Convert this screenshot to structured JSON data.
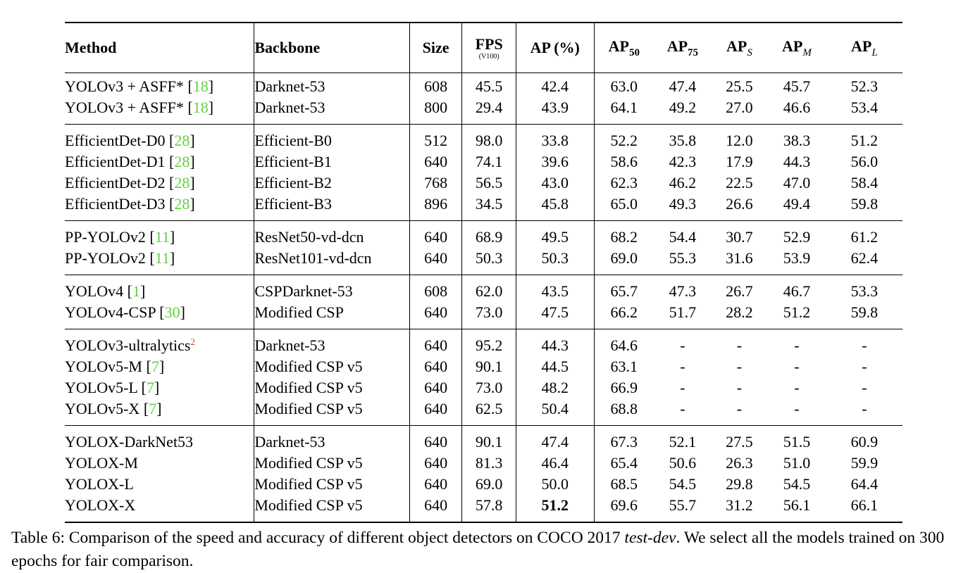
{
  "header": {
    "method": "Method",
    "backbone": "Backbone",
    "size": "Size",
    "fps": "FPS",
    "fps_sub": "(V100)",
    "ap": "AP (%)",
    "ap50": "AP",
    "ap50_sub": "50",
    "ap75": "AP",
    "ap75_sub": "75",
    "aps": "AP",
    "aps_sub": "S",
    "apm": "AP",
    "apm_sub": "M",
    "apl": "AP",
    "apl_sub": "L"
  },
  "groups": [
    {
      "rows": [
        {
          "method": "YOLOv3 + ASFF* [",
          "ref": "18",
          "close": "]",
          "backbone": "Darknet-53",
          "size": "608",
          "fps": "45.5",
          "ap": "42.4",
          "ap50": "63.0",
          "ap75": "47.4",
          "aps": "25.5",
          "apm": "45.7",
          "apl": "52.3"
        },
        {
          "method": "YOLOv3 + ASFF* [",
          "ref": "18",
          "close": "]",
          "backbone": "Darknet-53",
          "size": "800",
          "fps": "29.4",
          "ap": "43.9",
          "ap50": "64.1",
          "ap75": "49.2",
          "aps": "27.0",
          "apm": "46.6",
          "apl": "53.4"
        }
      ]
    },
    {
      "rows": [
        {
          "method": "EfficientDet-D0 [",
          "ref": "28",
          "close": "]",
          "backbone": "Efficient-B0",
          "size": "512",
          "fps": "98.0",
          "ap": "33.8",
          "ap50": "52.2",
          "ap75": "35.8",
          "aps": "12.0",
          "apm": "38.3",
          "apl": "51.2"
        },
        {
          "method": "EfficientDet-D1 [",
          "ref": "28",
          "close": "]",
          "backbone": "Efficient-B1",
          "size": "640",
          "fps": "74.1",
          "ap": "39.6",
          "ap50": "58.6",
          "ap75": "42.3",
          "aps": "17.9",
          "apm": "44.3",
          "apl": "56.0"
        },
        {
          "method": "EfficientDet-D2 [",
          "ref": "28",
          "close": "]",
          "backbone": "Efficient-B2",
          "size": "768",
          "fps": "56.5",
          "ap": "43.0",
          "ap50": "62.3",
          "ap75": "46.2",
          "aps": "22.5",
          "apm": "47.0",
          "apl": "58.4"
        },
        {
          "method": "EfficientDet-D3 [",
          "ref": "28",
          "close": "]",
          "backbone": "Efficient-B3",
          "size": "896",
          "fps": "34.5",
          "ap": "45.8",
          "ap50": "65.0",
          "ap75": "49.3",
          "aps": "26.6",
          "apm": "49.4",
          "apl": "59.8"
        }
      ]
    },
    {
      "rows": [
        {
          "method": "PP-YOLOv2 [",
          "ref": "11",
          "close": "]",
          "backbone": "ResNet50-vd-dcn",
          "size": "640",
          "fps": "68.9",
          "ap": "49.5",
          "ap50": "68.2",
          "ap75": "54.4",
          "aps": "30.7",
          "apm": "52.9",
          "apl": "61.2"
        },
        {
          "method": "PP-YOLOv2 [",
          "ref": "11",
          "close": "]",
          "backbone": "ResNet101-vd-dcn",
          "size": "640",
          "fps": "50.3",
          "ap": "50.3",
          "ap50": "69.0",
          "ap75": "55.3",
          "aps": "31.6",
          "apm": "53.9",
          "apl": "62.4"
        }
      ]
    },
    {
      "rows": [
        {
          "method": "YOLOv4 [",
          "ref": "1",
          "close": "]",
          "backbone": "CSPDarknet-53",
          "size": "608",
          "fps": "62.0",
          "ap": "43.5",
          "ap50": "65.7",
          "ap75": "47.3",
          "aps": "26.7",
          "apm": "46.7",
          "apl": "53.3"
        },
        {
          "method": "YOLOv4-CSP [",
          "ref": "30",
          "close": "]",
          "backbone": "Modified CSP",
          "size": "640",
          "fps": "73.0",
          "ap": "47.5",
          "ap50": "66.2",
          "ap75": "51.7",
          "aps": "28.2",
          "apm": "51.2",
          "apl": "59.8"
        }
      ]
    },
    {
      "rows": [
        {
          "method": "YOLOv3-ultralytics",
          "fn": "2",
          "backbone": "Darknet-53",
          "size": "640",
          "fps": "95.2",
          "ap": "44.3",
          "ap50": "64.6",
          "ap75": "-",
          "aps": "-",
          "apm": "-",
          "apl": "-"
        },
        {
          "method": "YOLOv5-M [",
          "ref": "7",
          "close": "]",
          "backbone": "Modified CSP v5",
          "size": "640",
          "fps": "90.1",
          "ap": "44.5",
          "ap50": "63.1",
          "ap75": "-",
          "aps": "-",
          "apm": "-",
          "apl": "-"
        },
        {
          "method": "YOLOv5-L [",
          "ref": "7",
          "close": "]",
          "backbone": "Modified CSP v5",
          "size": "640",
          "fps": "73.0",
          "ap": "48.2",
          "ap50": "66.9",
          "ap75": "-",
          "aps": "-",
          "apm": "-",
          "apl": "-"
        },
        {
          "method": "YOLOv5-X [",
          "ref": "7",
          "close": "]",
          "backbone": "Modified CSP v5",
          "size": "640",
          "fps": "62.5",
          "ap": "50.4",
          "ap50": "68.8",
          "ap75": "-",
          "aps": "-",
          "apm": "-",
          "apl": "-"
        }
      ]
    },
    {
      "rows": [
        {
          "method": "YOLOX-DarkNet53",
          "backbone": "Darknet-53",
          "size": "640",
          "fps": "90.1",
          "ap": "47.4",
          "ap50": "67.3",
          "ap75": "52.1",
          "aps": "27.5",
          "apm": "51.5",
          "apl": "60.9"
        },
        {
          "method": "YOLOX-M",
          "backbone": "Modified CSP v5",
          "size": "640",
          "fps": "81.3",
          "ap": "46.4",
          "ap50": "65.4",
          "ap75": "50.6",
          "aps": "26.3",
          "apm": "51.0",
          "apl": "59.9"
        },
        {
          "method": "YOLOX-L",
          "backbone": "Modified CSP v5",
          "size": "640",
          "fps": "69.0",
          "ap": "50.0",
          "ap50": "68.5",
          "ap75": "54.5",
          "aps": "29.8",
          "apm": "54.5",
          "apl": "64.4"
        },
        {
          "method": "YOLOX-X",
          "backbone": "Modified CSP v5",
          "size": "640",
          "fps": "57.8",
          "ap": "51.2",
          "ap_bold": true,
          "ap50": "69.6",
          "ap75": "55.7",
          "aps": "31.2",
          "apm": "56.1",
          "apl": "66.1"
        }
      ]
    }
  ],
  "caption": {
    "pre": "Table 6: Comparison of the speed and accuracy of different object detectors on COCO 2017 ",
    "italic": "test-dev",
    "post": ". We select all the models trained on 300 epochs for fair comparison."
  },
  "colors": {
    "ref": "#5fd13f",
    "footnote": "#d43a2a"
  }
}
